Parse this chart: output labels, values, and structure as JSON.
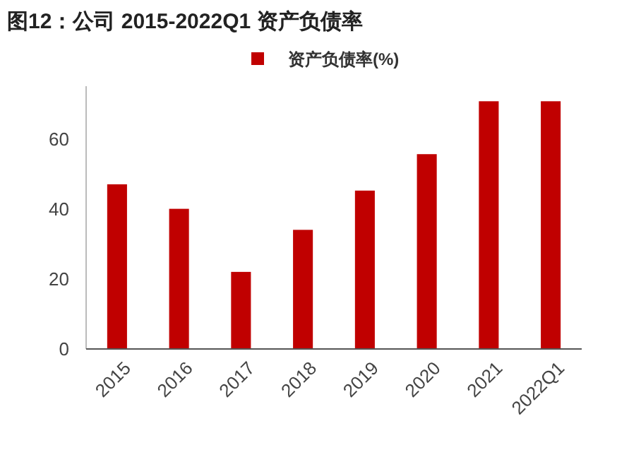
{
  "chart_data": {
    "type": "bar",
    "title": "图12：公司 2015-2022Q1 资产负债率",
    "categories": [
      "2015",
      "2016",
      "2017",
      "2018",
      "2019",
      "2020",
      "2021",
      "2022Q1"
    ],
    "series": [
      {
        "name": "资产负债率(%)",
        "color": "#c00000",
        "values": [
          47,
          40,
          22,
          34,
          45.2,
          55.6,
          70.7,
          70.7
        ]
      }
    ],
    "ylim": [
      0,
      75
    ],
    "yticks": [
      0,
      20,
      40,
      60
    ],
    "grid": false,
    "legend": "top"
  }
}
